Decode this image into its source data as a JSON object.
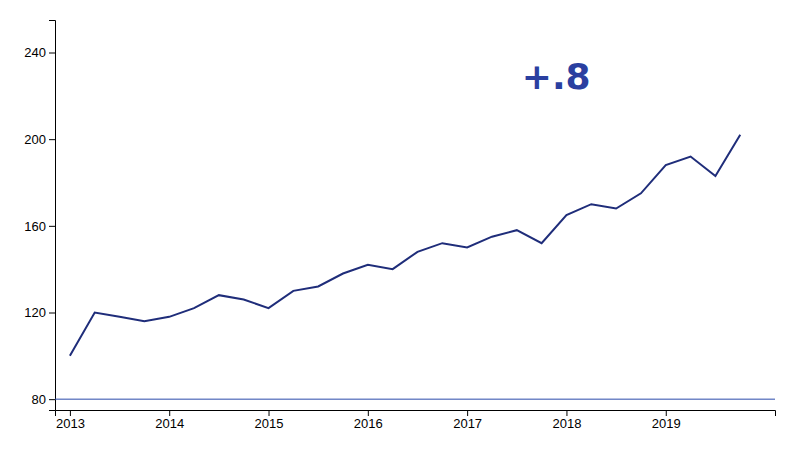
{
  "chart_data": {
    "type": "line",
    "x": [
      2013.0,
      2013.25,
      2013.5,
      2013.75,
      2014.0,
      2014.25,
      2014.5,
      2014.75,
      2015.0,
      2015.25,
      2015.5,
      2015.75,
      2016.0,
      2016.25,
      2016.5,
      2016.75,
      2017.0,
      2017.25,
      2017.5,
      2017.75,
      2018.0,
      2018.25,
      2018.5,
      2018.75,
      2019.0,
      2019.25,
      2019.5,
      2019.75
    ],
    "values": [
      100,
      120,
      118,
      116,
      118,
      122,
      128,
      126,
      122,
      130,
      132,
      138,
      142,
      140,
      148,
      152,
      150,
      155,
      158,
      152,
      165,
      170,
      168,
      175,
      188,
      192,
      183,
      202
    ],
    "color": "#1f2d7a",
    "reference_lines": [
      {
        "y": 80,
        "color": "#2a4aaa"
      }
    ],
    "annotations": [
      {
        "text": "+.8",
        "x": 2017.55,
        "y": 228,
        "color": "#2a3fa0"
      }
    ],
    "xlim": [
      2012.85,
      2020.1
    ],
    "ylim": [
      75,
      255
    ],
    "xticks": [
      2013,
      2014,
      2015,
      2016,
      2017,
      2018,
      2019
    ],
    "yticks": [
      80,
      120,
      160,
      200,
      240
    ],
    "grid": false
  }
}
